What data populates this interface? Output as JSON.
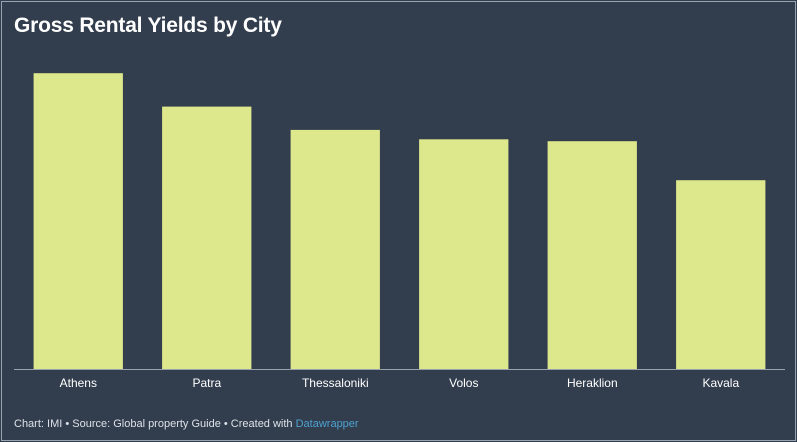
{
  "chart_data": {
    "type": "bar",
    "title": "Gross Rental Yields by City",
    "categories": [
      "Athens",
      "Patra",
      "Thessaloniki",
      "Volos",
      "Heraklion",
      "Kavala"
    ],
    "values": [
      4.7,
      4.17,
      3.8,
      3.65,
      3.62,
      3.0
    ],
    "ylim": [
      0,
      5.8
    ],
    "bar_color": "#dde78b",
    "background_color": "#323d4d",
    "grid": false,
    "xlabel": "",
    "ylabel": ""
  },
  "footer": {
    "prefix": "Chart: IMI • Source: Global property Guide • Created with ",
    "link": "Datawrapper",
    "link_color": "#4fa3d1"
  }
}
